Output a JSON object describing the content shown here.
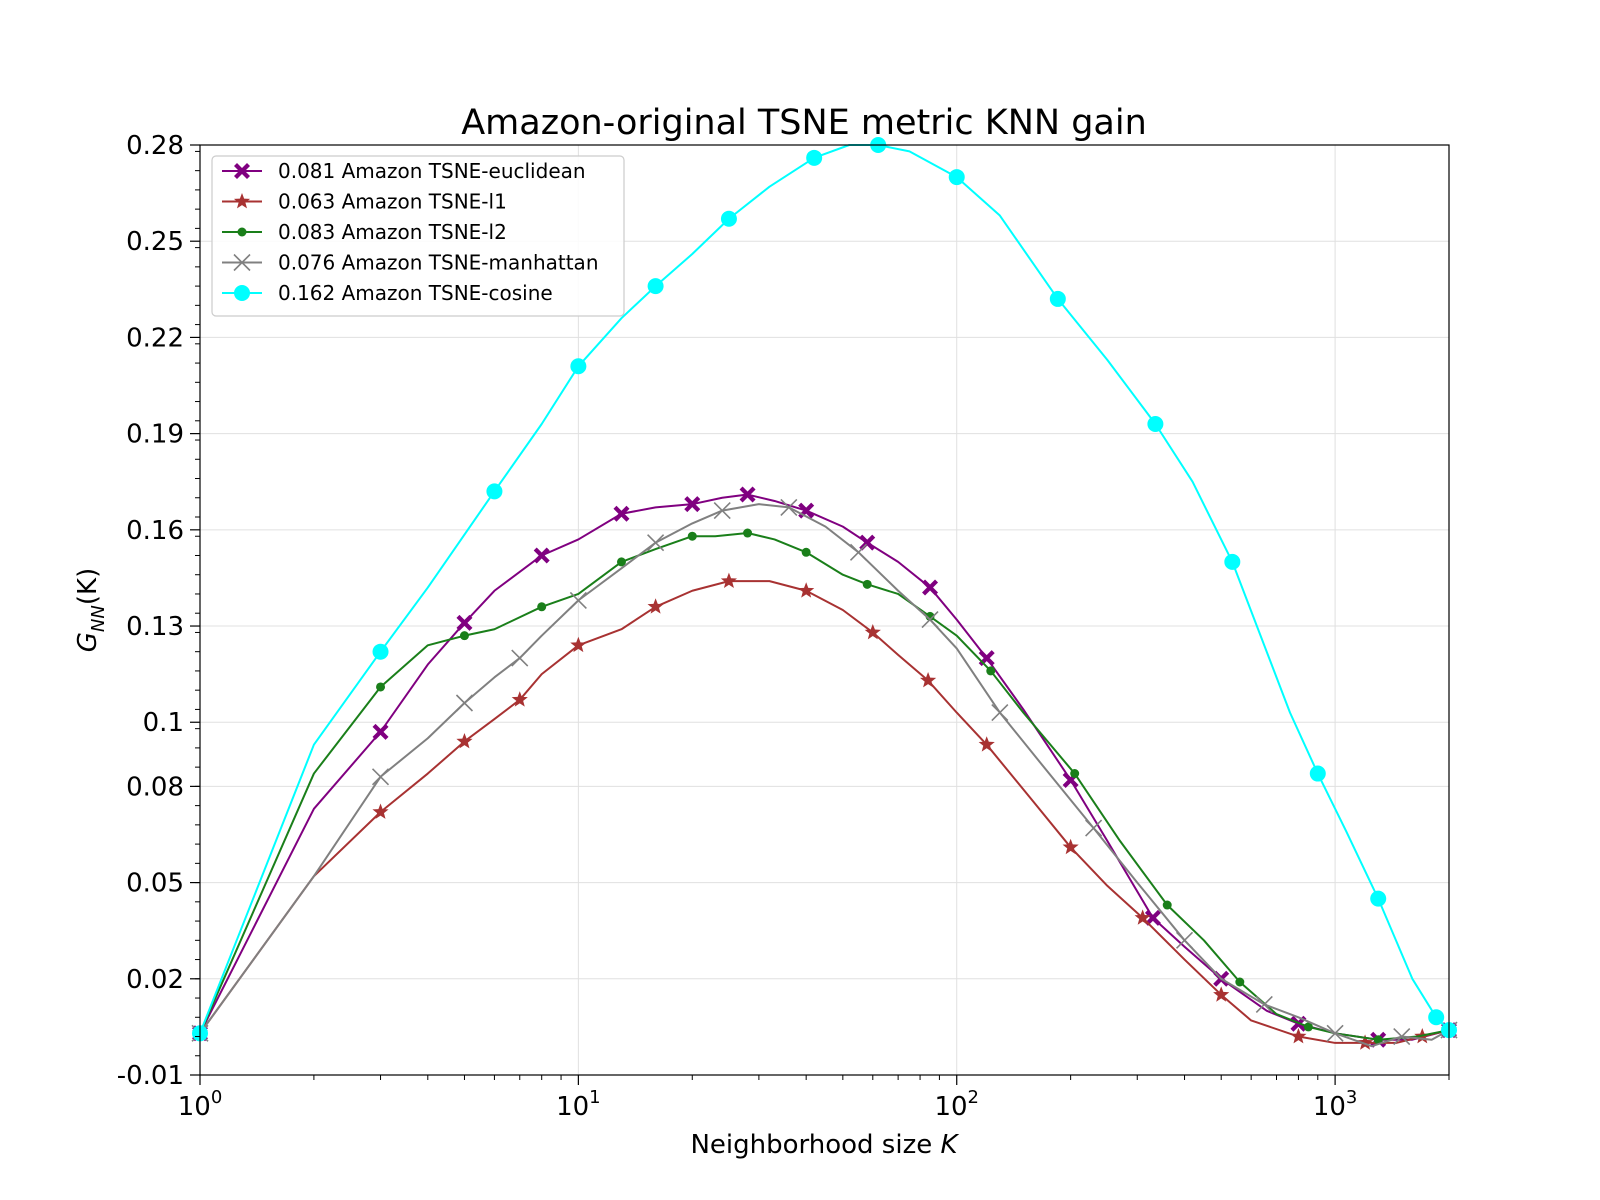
{
  "chart_data": {
    "type": "line",
    "title": "Amazon-original TSNE metric KNN gain",
    "xlabel": "Neighborhood size",
    "xlabel_var": "K",
    "ylabel_main": "G",
    "ylabel_sub": "NN",
    "ylabel_arg": "(K)",
    "xscale": "log",
    "xlim": [
      1,
      2000
    ],
    "ylim": [
      -0.01,
      0.28
    ],
    "xticks": [
      {
        "value": 1,
        "base": "10",
        "exp": "0"
      },
      {
        "value": 10,
        "base": "10",
        "exp": "1"
      },
      {
        "value": 100,
        "base": "10",
        "exp": "2"
      },
      {
        "value": 1000,
        "base": "10",
        "exp": "3"
      }
    ],
    "yticks": [
      {
        "value": 0.28,
        "label": "0.28"
      },
      {
        "value": 0.25,
        "label": "0.25"
      },
      {
        "value": 0.22,
        "label": "0.22"
      },
      {
        "value": 0.19,
        "label": "0.19"
      },
      {
        "value": 0.16,
        "label": "0.16"
      },
      {
        "value": 0.13,
        "label": "0.13"
      },
      {
        "value": 0.1,
        "label": "0.1"
      },
      {
        "value": 0.08,
        "label": "0.08"
      },
      {
        "value": 0.05,
        "label": "0.05"
      },
      {
        "value": 0.02,
        "label": "0.02"
      },
      {
        "value": -0.01,
        "label": "-0.01"
      }
    ],
    "grid": true,
    "legend_position": "top-left",
    "series": [
      {
        "name": "0.081 Amazon TSNE-euclidean",
        "color": "#800080",
        "marker": "X",
        "x": [
          1,
          2,
          3,
          4,
          5,
          6,
          8,
          10,
          13,
          16,
          20,
          24,
          28,
          33,
          40,
          50,
          58,
          70,
          85,
          100,
          120,
          150,
          200,
          250,
          330,
          400,
          500,
          660,
          800,
          1000,
          1300,
          1600,
          2000
        ],
        "y": [
          0.003,
          0.073,
          0.097,
          0.118,
          0.131,
          0.141,
          0.152,
          0.157,
          0.165,
          0.167,
          0.168,
          0.17,
          0.171,
          0.169,
          0.166,
          0.161,
          0.156,
          0.15,
          0.142,
          0.132,
          0.12,
          0.104,
          0.082,
          0.063,
          0.039,
          0.03,
          0.02,
          0.01,
          0.006,
          0.003,
          0.001,
          0.001,
          0.004
        ]
      },
      {
        "name": "0.063 Amazon TSNE-l1",
        "color": "#a83232",
        "marker": "star",
        "x": [
          1,
          2,
          3,
          4,
          5,
          6,
          7,
          8,
          10,
          13,
          16,
          20,
          25,
          32,
          40,
          50,
          60,
          70,
          84,
          100,
          120,
          160,
          200,
          250,
          310,
          400,
          500,
          600,
          800,
          1000,
          1200,
          1450,
          1700,
          2000
        ],
        "y": [
          0.003,
          0.052,
          0.072,
          0.084,
          0.094,
          0.101,
          0.107,
          0.115,
          0.124,
          0.129,
          0.136,
          0.141,
          0.144,
          0.144,
          0.141,
          0.135,
          0.128,
          0.121,
          0.113,
          0.103,
          0.093,
          0.075,
          0.061,
          0.049,
          0.039,
          0.026,
          0.015,
          0.007,
          0.002,
          0.0,
          0.0,
          0.0,
          0.002,
          0.004
        ]
      },
      {
        "name": "0.083 Amazon TSNE-l2",
        "color": "#1a7f1a",
        "marker": "dot",
        "x": [
          1,
          2,
          3,
          4,
          5,
          6,
          8,
          10,
          13,
          16,
          20,
          23,
          28,
          33,
          40,
          50,
          58,
          70,
          85,
          100,
          123,
          150,
          205,
          270,
          360,
          450,
          560,
          700,
          850,
          1000,
          1300,
          1650,
          2000
        ],
        "y": [
          0.003,
          0.084,
          0.111,
          0.124,
          0.127,
          0.129,
          0.136,
          0.14,
          0.15,
          0.154,
          0.158,
          0.158,
          0.159,
          0.157,
          0.153,
          0.146,
          0.143,
          0.14,
          0.133,
          0.127,
          0.116,
          0.103,
          0.084,
          0.063,
          0.043,
          0.032,
          0.019,
          0.009,
          0.005,
          0.003,
          0.001,
          0.002,
          0.004
        ]
      },
      {
        "name": "0.076 Amazon TSNE-manhattan",
        "color": "#808080",
        "marker": "x",
        "x": [
          1,
          2,
          3,
          4,
          5,
          6,
          7,
          8,
          10,
          13,
          16,
          20,
          24,
          30,
          36,
          45,
          55,
          70,
          85,
          100,
          130,
          170,
          230,
          300,
          400,
          500,
          650,
          800,
          1000,
          1250,
          1500,
          1800,
          2000
        ],
        "y": [
          0.003,
          0.052,
          0.083,
          0.095,
          0.106,
          0.114,
          0.12,
          0.127,
          0.138,
          0.148,
          0.156,
          0.162,
          0.166,
          0.168,
          0.167,
          0.161,
          0.153,
          0.141,
          0.132,
          0.123,
          0.103,
          0.086,
          0.067,
          0.05,
          0.032,
          0.02,
          0.012,
          0.008,
          0.003,
          -0.001,
          0.002,
          0.001,
          0.004
        ]
      },
      {
        "name": "0.162 Amazon TSNE-cosine",
        "color": "#00ffff",
        "marker": "o",
        "x": [
          1,
          2,
          3,
          4,
          6,
          8,
          10,
          13,
          16,
          20,
          25,
          32,
          42,
          52,
          62,
          75,
          100,
          130,
          185,
          250,
          335,
          420,
          535,
          760,
          900,
          1070,
          1300,
          1600,
          1850,
          2000
        ],
        "y": [
          0.003,
          0.093,
          0.122,
          0.142,
          0.172,
          0.193,
          0.211,
          0.226,
          0.236,
          0.246,
          0.257,
          0.267,
          0.276,
          0.28,
          0.28,
          0.278,
          0.27,
          0.258,
          0.232,
          0.213,
          0.193,
          0.175,
          0.15,
          0.103,
          0.084,
          0.066,
          0.045,
          0.02,
          0.008,
          0.004
        ]
      }
    ]
  }
}
